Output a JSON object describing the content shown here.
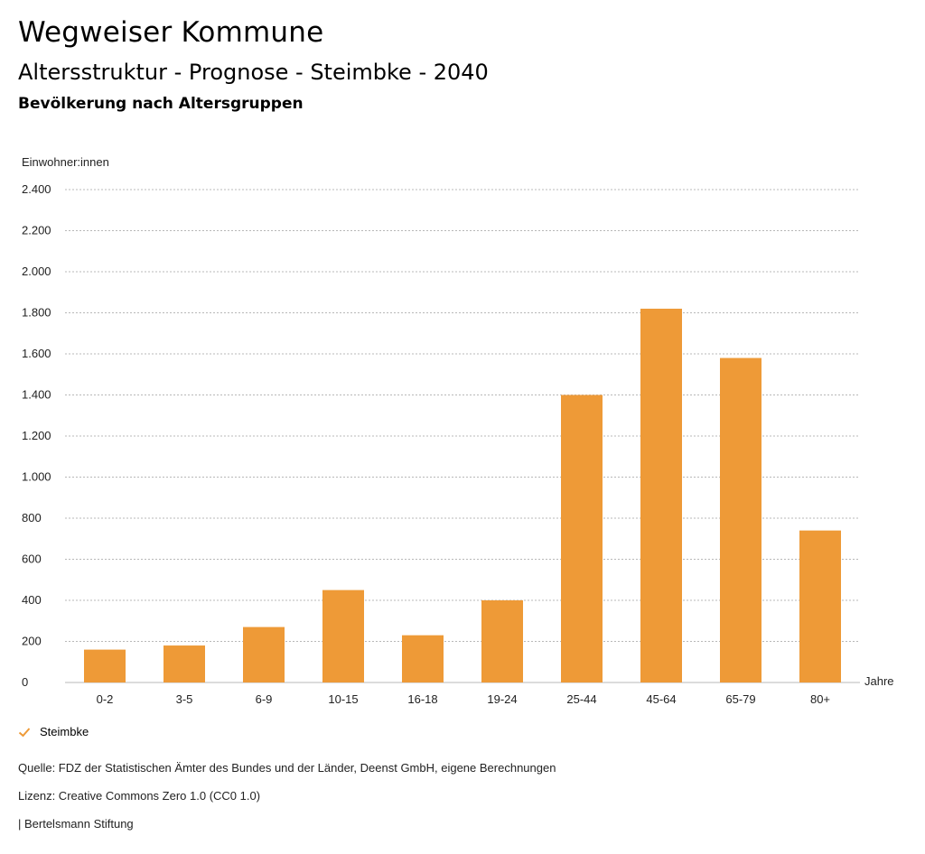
{
  "header": {
    "brand": "Wegweiser Kommune",
    "subtitle": "Altersstruktur - Prognose - Steimbke - 2040",
    "section_title": "Bevölkerung nach Altersgruppen"
  },
  "legend": {
    "label": "Steimbke",
    "color": "#ee9a37",
    "icon": "check-icon"
  },
  "footer": {
    "source": "Quelle: FDZ der Statistischen Ämter des Bundes und der Länder, Deenst GmbH, eigene Berechnungen",
    "license": "Lizenz: Creative Commons Zero 1.0 (CC0 1.0)",
    "publisher": "| Bertelsmann Stiftung"
  },
  "chart_data": {
    "type": "bar",
    "title": "",
    "ylabel": "Einwohner:innen",
    "xlabel": "Jahre",
    "ylim": [
      0,
      2400
    ],
    "yticks": [
      0,
      200,
      400,
      600,
      800,
      1000,
      1200,
      1400,
      1600,
      1800,
      2000,
      2200,
      2400
    ],
    "ytick_labels": [
      "0",
      "200",
      "400",
      "600",
      "800",
      "1.000",
      "1.200",
      "1.400",
      "1.600",
      "1.800",
      "2.000",
      "2.200",
      "2.400"
    ],
    "categories": [
      "0-2",
      "3-5",
      "6-9",
      "10-15",
      "16-18",
      "19-24",
      "25-44",
      "45-64",
      "65-79",
      "80+"
    ],
    "series": [
      {
        "name": "Steimbke",
        "color": "#ee9a37",
        "values": [
          160,
          180,
          270,
          450,
          230,
          400,
          1400,
          1820,
          1580,
          740
        ]
      }
    ],
    "grid": true,
    "grid_style": "dotted",
    "legend_position": "bottom-left"
  }
}
